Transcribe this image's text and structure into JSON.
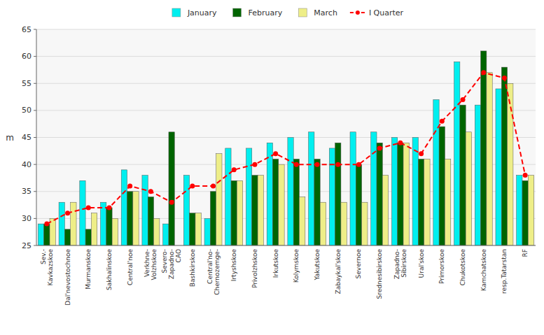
{
  "chart_data": {
    "type": "bar",
    "y_label": "m",
    "categories": [
      "Sev.-\nKavkazskoe",
      "Dal'nevostochnoe",
      "Murmanskoe",
      "Sakhalinskoe",
      "Central'noe",
      "Verkhne-\nVolzhskoe",
      "Severo-\nZapadno-\nCAO",
      "Bashkirskoe",
      "Central'no-\nChernozemge-\n",
      "Irtyshskoe",
      "Privolzhskoe",
      "Irkutskoe",
      "Kolymskoe",
      "Yakutskoe",
      "Zabaykal'skoe",
      "Severnoe",
      "Srednesibirskoe",
      "Zapadno-\nSibirskoe",
      "Ural'skoe",
      "Primorskoe",
      "Chukotskoe",
      "Kamchatskoe",
      "resp.Tatarstan",
      "RF"
    ],
    "series": [
      {
        "name": "January",
        "type": "bar",
        "color": "#00EFEF",
        "values": [
          29,
          33,
          37,
          33,
          39,
          38,
          29,
          38,
          30,
          43,
          43,
          44,
          45,
          46,
          43,
          46,
          46,
          45,
          45,
          52,
          59,
          51,
          54,
          38
        ]
      },
      {
        "name": "February",
        "type": "bar",
        "color": "#006400",
        "values": [
          29,
          28,
          28,
          32,
          35,
          34,
          46,
          31,
          35,
          37,
          38,
          41,
          41,
          41,
          44,
          40,
          44,
          44,
          41,
          47,
          51,
          61,
          58,
          37
        ]
      },
      {
        "name": "March",
        "type": "bar",
        "color": "#EEEE88",
        "values": [
          30,
          33,
          31,
          30,
          35,
          30,
          25,
          31,
          42,
          37,
          38,
          40,
          34,
          33,
          33,
          33,
          38,
          44,
          41,
          41,
          46,
          57,
          55,
          38
        ]
      },
      {
        "name": "I Quarter",
        "type": "line",
        "color": "#FF0000",
        "line_style": "dashed",
        "marker": "circle",
        "values": [
          29,
          31,
          32,
          32,
          36,
          35,
          33,
          36,
          36,
          39,
          40,
          42,
          40,
          40,
          40,
          40,
          43,
          44,
          42,
          48,
          52,
          57,
          56,
          38
        ]
      }
    ],
    "ylim": [
      25,
      65
    ],
    "yticks": [
      25,
      30,
      35,
      40,
      45,
      50,
      55,
      60,
      65
    ],
    "grid": true,
    "legend": "top"
  }
}
